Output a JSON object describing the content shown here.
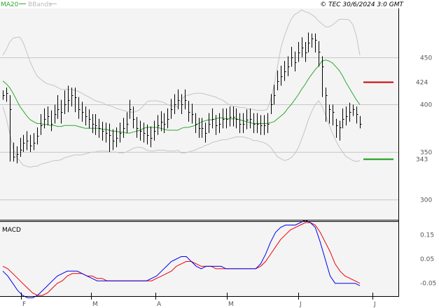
{
  "header": {
    "legend_ma": "MA20",
    "legend_ma_color": "#2fa82f",
    "legend_bb": "BBands",
    "legend_bb_color": "#bbbbbb",
    "copyright": "© TEC 30/6/2024 3:0 GMT"
  },
  "colors": {
    "background": "#f4f4f4",
    "grid": "#c8c8c8",
    "price": "#000000",
    "ma20": "#2fa82f",
    "bbands": "#c4c4c4",
    "macd": "#0000ee",
    "signal": "#ee0000",
    "resistance": "#cc0000",
    "support": "#119911"
  },
  "chart_data": [
    {
      "type": "ohlc",
      "ylim": [
        280,
        500
      ],
      "y_ticks": [
        "450",
        "400",
        "350",
        "300"
      ],
      "x_ticks": [
        "F",
        "M",
        "A",
        "M",
        "J",
        "J"
      ],
      "close": [
        410,
        412,
        395,
        345,
        348,
        352,
        360,
        362,
        357,
        360,
        367,
        378,
        385,
        388,
        380,
        390,
        395,
        392,
        400,
        405,
        410,
        408,
        395,
        392,
        388,
        385,
        380,
        378,
        375,
        372,
        370,
        368,
        362,
        365,
        370,
        375,
        380,
        395,
        385,
        375,
        372,
        370,
        368,
        365,
        372,
        378,
        382,
        380,
        385,
        395,
        400,
        405,
        400,
        405,
        392,
        390,
        380,
        375,
        375,
        370,
        380,
        385,
        378,
        380,
        385,
        385,
        387,
        387,
        385,
        380,
        380,
        384,
        385,
        380,
        380,
        378,
        378,
        380,
        400,
        410,
        425,
        430,
        435,
        440,
        450,
        445,
        455,
        460,
        455,
        465,
        470,
        468,
        456,
        440,
        410,
        395,
        392,
        378,
        376,
        385,
        388,
        392,
        395,
        390,
        380
      ],
      "high": [
        415,
        418,
        410,
        360,
        356,
        365,
        368,
        372,
        368,
        370,
        376,
        390,
        396,
        398,
        394,
        400,
        410,
        405,
        415,
        420,
        418,
        418,
        408,
        403,
        398,
        395,
        390,
        390,
        385,
        382,
        381,
        380,
        374,
        376,
        381,
        386,
        392,
        405,
        398,
        387,
        383,
        381,
        379,
        377,
        383,
        389,
        393,
        391,
        396,
        406,
        411,
        416,
        411,
        416,
        404,
        401,
        391,
        386,
        386,
        381,
        391,
        396,
        389,
        391,
        396,
        396,
        398,
        398,
        396,
        391,
        391,
        395,
        396,
        391,
        391,
        389,
        389,
        391,
        411,
        421,
        436,
        441,
        446,
        451,
        461,
        456,
        466,
        471,
        466,
        476,
        475,
        475,
        467,
        451,
        418,
        400,
        400,
        385,
        383,
        396,
        398,
        402,
        400,
        398,
        388
      ],
      "low": [
        405,
        403,
        340,
        340,
        338,
        345,
        350,
        352,
        350,
        352,
        358,
        368,
        375,
        378,
        372,
        380,
        385,
        380,
        390,
        392,
        398,
        392,
        385,
        382,
        378,
        375,
        370,
        368,
        365,
        362,
        360,
        350,
        352,
        355,
        360,
        365,
        370,
        385,
        375,
        365,
        362,
        360,
        358,
        355,
        362,
        368,
        372,
        370,
        375,
        385,
        390,
        395,
        390,
        395,
        382,
        380,
        370,
        365,
        365,
        360,
        370,
        375,
        368,
        370,
        375,
        375,
        377,
        377,
        375,
        370,
        370,
        374,
        375,
        370,
        370,
        368,
        368,
        370,
        390,
        400,
        415,
        420,
        425,
        430,
        440,
        435,
        445,
        450,
        445,
        455,
        460,
        455,
        440,
        408,
        382,
        380,
        378,
        365,
        362,
        375,
        378,
        382,
        388,
        380,
        375
      ],
      "ma20": [
        425,
        422,
        418,
        412,
        405,
        398,
        393,
        388,
        384,
        382,
        380,
        380,
        379,
        379,
        378,
        378,
        377,
        377,
        378,
        378,
        378,
        378,
        377,
        376,
        375,
        375,
        375,
        375,
        375,
        374,
        374,
        373,
        372,
        372,
        371,
        371,
        370,
        370,
        371,
        372,
        373,
        375,
        376,
        376,
        376,
        376,
        375,
        374,
        373,
        373,
        373,
        373,
        375,
        376,
        376,
        377,
        378,
        380,
        382,
        383,
        384,
        384,
        385,
        386,
        386,
        385,
        385,
        385,
        385,
        384,
        383,
        382,
        381,
        380,
        380,
        380,
        380,
        380,
        381,
        382,
        385,
        388,
        391,
        396,
        400,
        405,
        410,
        416,
        421,
        427,
        432,
        437,
        441,
        446,
        447,
        446,
        444,
        440,
        436,
        430,
        423,
        417,
        411,
        405,
        400
      ],
      "bb_upper": [
        452,
        458,
        466,
        470,
        471,
        471,
        465,
        455,
        445,
        437,
        430,
        427,
        424,
        422,
        421,
        420,
        418,
        416,
        416,
        416,
        416,
        415,
        414,
        412,
        410,
        408,
        406,
        404,
        403,
        402,
        400,
        399,
        398,
        396,
        395,
        394,
        393,
        392,
        392,
        393,
        395,
        399,
        403,
        404,
        404,
        404,
        403,
        402,
        400,
        399,
        398,
        398,
        405,
        409,
        410,
        411,
        412,
        412,
        412,
        411,
        410,
        409,
        408,
        406,
        405,
        402,
        400,
        398,
        398,
        397,
        397,
        396,
        395,
        395,
        394,
        394,
        394,
        395,
        405,
        420,
        440,
        460,
        472,
        482,
        490,
        495,
        497,
        500,
        498,
        497,
        495,
        492,
        488,
        485,
        482,
        482,
        484,
        487,
        490,
        490,
        490,
        489,
        484,
        472,
        452
      ],
      "bb_lower": [
        398,
        386,
        370,
        354,
        345,
        340,
        336,
        335,
        334,
        335,
        335,
        337,
        338,
        339,
        340,
        341,
        341,
        342,
        344,
        345,
        346,
        347,
        347,
        347,
        348,
        349,
        350,
        350,
        351,
        351,
        351,
        350,
        350,
        350,
        349,
        349,
        350,
        352,
        354,
        355,
        355,
        354,
        352,
        351,
        351,
        352,
        352,
        352,
        351,
        351,
        351,
        352,
        349,
        349,
        350,
        351,
        352,
        354,
        355,
        357,
        358,
        360,
        361,
        362,
        363,
        363,
        364,
        365,
        366,
        366,
        366,
        365,
        364,
        362,
        362,
        361,
        360,
        358,
        355,
        350,
        345,
        343,
        341,
        342,
        344,
        348,
        354,
        363,
        373,
        384,
        393,
        400,
        404,
        398,
        389,
        379,
        370,
        362,
        355,
        350,
        345,
        343,
        341,
        340,
        341
      ],
      "levels": [
        {
          "label": "424",
          "value": 424,
          "color": "#cc0000"
        },
        {
          "label": "343",
          "value": 343,
          "color": "#119911"
        }
      ]
    },
    {
      "type": "line",
      "title": "MACD",
      "ylim": [
        -0.1,
        0.2
      ],
      "y_ticks": [
        "0.15",
        "0.05",
        "-0.05"
      ],
      "series": [
        {
          "values": [
            0.0,
            -0.02,
            -0.05,
            -0.08,
            -0.1,
            -0.11,
            -0.11,
            -0.1,
            -0.08,
            -0.06,
            -0.04,
            -0.02,
            -0.01,
            0.0,
            0.0,
            0.0,
            -0.01,
            -0.02,
            -0.03,
            -0.04,
            -0.04,
            -0.04,
            -0.04,
            -0.04,
            -0.04,
            -0.04,
            -0.04,
            -0.04,
            -0.04,
            -0.04,
            -0.03,
            -0.02,
            0.0,
            0.02,
            0.04,
            0.05,
            0.06,
            0.06,
            0.04,
            0.02,
            0.01,
            0.02,
            0.02,
            0.02,
            0.02,
            0.01,
            0.01,
            0.01,
            0.01,
            0.01,
            0.01,
            0.01,
            0.03,
            0.07,
            0.12,
            0.16,
            0.18,
            0.19,
            0.19,
            0.19,
            0.2,
            0.21,
            0.2,
            0.18,
            0.12,
            0.05,
            -0.02,
            -0.05,
            -0.05,
            -0.05,
            -0.05,
            -0.05,
            -0.06
          ]
        },
        {
          "values": [
            0.02,
            0.01,
            -0.01,
            -0.03,
            -0.05,
            -0.07,
            -0.09,
            -0.1,
            -0.1,
            -0.09,
            -0.07,
            -0.05,
            -0.04,
            -0.02,
            -0.01,
            -0.01,
            -0.01,
            -0.02,
            -0.02,
            -0.03,
            -0.03,
            -0.04,
            -0.04,
            -0.04,
            -0.04,
            -0.04,
            -0.04,
            -0.04,
            -0.04,
            -0.04,
            -0.04,
            -0.03,
            -0.02,
            -0.01,
            0.0,
            0.02,
            0.03,
            0.04,
            0.04,
            0.03,
            0.02,
            0.02,
            0.02,
            0.01,
            0.01,
            0.01,
            0.01,
            0.01,
            0.01,
            0.01,
            0.01,
            0.01,
            0.02,
            0.04,
            0.07,
            0.1,
            0.13,
            0.15,
            0.17,
            0.18,
            0.19,
            0.2,
            0.2,
            0.19,
            0.16,
            0.12,
            0.08,
            0.03,
            0.0,
            -0.02,
            -0.03,
            -0.04,
            -0.05
          ]
        }
      ]
    }
  ]
}
